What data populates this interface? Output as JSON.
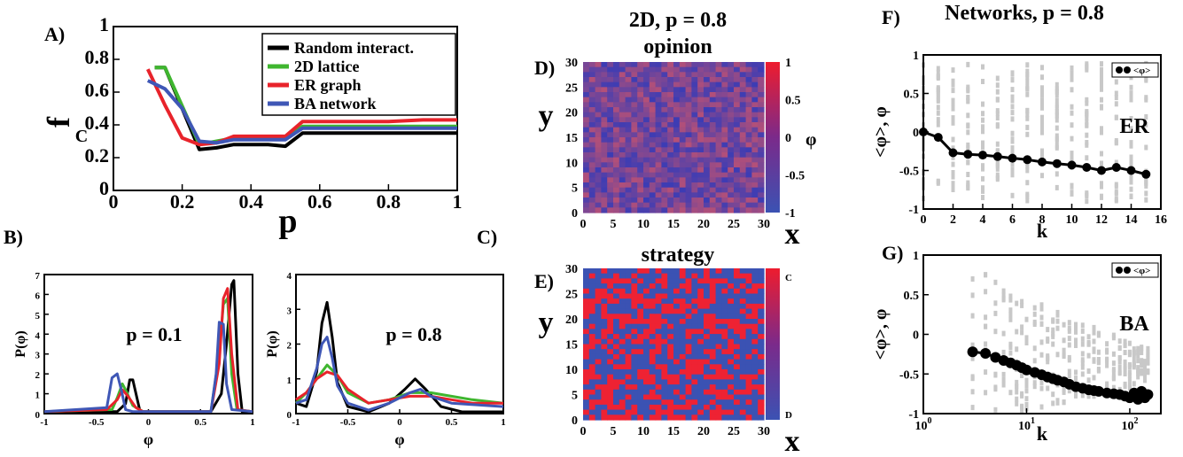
{
  "colors": {
    "random": "#000000",
    "lattice": "#3fb62f",
    "er": "#e8232b",
    "ba": "#3f57b6",
    "gray": "#c8c8c8",
    "blue": "#3b52b3",
    "red": "#ee2233"
  },
  "chart_data": [
    {
      "id": "A",
      "type": "line",
      "panel_label": "A)",
      "xlabel": "p",
      "ylabel": "f",
      "ylabel_sub": "C",
      "xlim": [
        0,
        1
      ],
      "ylim": [
        0,
        1
      ],
      "xticks": [
        "0",
        "0.2",
        "0.4",
        "0.6",
        "0.8",
        "1"
      ],
      "yticks": [
        "0",
        "0.2",
        "0.4",
        "0.6",
        "0.8",
        "1"
      ],
      "legend_position": "top-right",
      "series": [
        {
          "name": "Random interact.",
          "color_key": "random",
          "x": [
            0.12,
            0.15,
            0.25,
            0.3,
            0.35,
            0.4,
            0.45,
            0.5,
            0.55,
            0.6,
            0.7,
            0.8,
            0.9,
            1.0
          ],
          "y": [
            0.75,
            0.75,
            0.25,
            0.26,
            0.28,
            0.28,
            0.28,
            0.27,
            0.35,
            0.35,
            0.35,
            0.35,
            0.35,
            0.35
          ]
        },
        {
          "name": "2D lattice",
          "color_key": "lattice",
          "x": [
            0.12,
            0.15,
            0.25,
            0.3,
            0.35,
            0.4,
            0.45,
            0.5,
            0.55,
            0.6,
            0.7,
            0.8,
            0.9,
            1.0
          ],
          "y": [
            0.75,
            0.75,
            0.28,
            0.3,
            0.32,
            0.32,
            0.32,
            0.32,
            0.39,
            0.39,
            0.39,
            0.39,
            0.39,
            0.39
          ]
        },
        {
          "name": "ER graph",
          "color_key": "er",
          "x": [
            0.1,
            0.15,
            0.2,
            0.25,
            0.3,
            0.35,
            0.4,
            0.45,
            0.5,
            0.55,
            0.6,
            0.7,
            0.8,
            0.9,
            1.0
          ],
          "y": [
            0.74,
            0.52,
            0.32,
            0.28,
            0.29,
            0.33,
            0.33,
            0.33,
            0.33,
            0.42,
            0.42,
            0.42,
            0.42,
            0.43,
            0.43
          ]
        },
        {
          "name": "BA network",
          "color_key": "ba",
          "x": [
            0.1,
            0.15,
            0.2,
            0.25,
            0.3,
            0.35,
            0.4,
            0.45,
            0.5,
            0.55,
            0.6,
            0.7,
            0.8,
            0.9,
            1.0
          ],
          "y": [
            0.67,
            0.62,
            0.5,
            0.3,
            0.29,
            0.31,
            0.31,
            0.31,
            0.31,
            0.38,
            0.38,
            0.38,
            0.38,
            0.38,
            0.38
          ]
        }
      ]
    },
    {
      "id": "B",
      "type": "line",
      "panel_label": "B)",
      "annotation": "p = 0.1",
      "xlabel": "φ",
      "ylabel": "P(φ)",
      "xlim": [
        -1,
        1
      ],
      "ylim": [
        0,
        7
      ],
      "xticks": [
        "-1",
        "-0.5",
        "0",
        "0.5",
        "1"
      ],
      "xtick_values": [
        -1,
        -0.5,
        0,
        0.5,
        1
      ],
      "yticks": [
        "0",
        "1",
        "2",
        "3",
        "4",
        "5",
        "6",
        "7"
      ],
      "series": [
        {
          "color_key": "random",
          "x": [
            -1,
            -0.3,
            -0.22,
            -0.18,
            -0.15,
            -0.08,
            0.6,
            0.7,
            0.75,
            0.8,
            0.82,
            0.86,
            0.9,
            1.0
          ],
          "y": [
            0.1,
            0.1,
            0.5,
            1.7,
            1.7,
            0.1,
            0.1,
            1.0,
            3.5,
            6.5,
            6.7,
            2.0,
            0.1,
            0.1
          ]
        },
        {
          "color_key": "lattice",
          "x": [
            -1,
            -0.35,
            -0.3,
            -0.25,
            -0.22,
            -0.15,
            -0.05,
            0.6,
            0.68,
            0.72,
            0.76,
            0.8,
            0.85,
            1.0
          ],
          "y": [
            0.1,
            0.2,
            0.8,
            1.5,
            1.2,
            0.4,
            0.1,
            0.1,
            3.0,
            5.5,
            5.8,
            2.0,
            0.2,
            0.1
          ]
        },
        {
          "color_key": "er",
          "x": [
            -1,
            -0.4,
            -0.3,
            -0.25,
            -0.2,
            -0.12,
            -0.05,
            0.6,
            0.68,
            0.72,
            0.76,
            0.8,
            0.86,
            1.0
          ],
          "y": [
            0.1,
            0.2,
            0.7,
            1.2,
            0.9,
            0.3,
            0.1,
            0.1,
            2.5,
            5.8,
            6.3,
            3.0,
            0.2,
            0.1
          ]
        },
        {
          "color_key": "ba",
          "x": [
            -1,
            -0.4,
            -0.35,
            -0.3,
            -0.26,
            -0.22,
            -0.15,
            0.6,
            0.65,
            0.68,
            0.72,
            0.75,
            0.8,
            1.0
          ],
          "y": [
            0.1,
            0.3,
            1.8,
            2.0,
            1.2,
            0.2,
            0.1,
            0.1,
            2.0,
            4.6,
            4.5,
            1.5,
            0.2,
            0.1
          ]
        }
      ]
    },
    {
      "id": "C",
      "type": "line",
      "panel_label": "C)",
      "annotation": "p = 0.8",
      "xlabel": "φ",
      "ylabel": "P(φ)",
      "xlim": [
        -1,
        1
      ],
      "ylim": [
        0,
        4
      ],
      "xticks": [
        "-1",
        "-0.5",
        "0",
        "0.5",
        "1"
      ],
      "xtick_values": [
        -1,
        -0.5,
        0,
        0.5,
        1
      ],
      "yticks": [
        "0",
        "1",
        "2",
        "3",
        "4"
      ],
      "series": [
        {
          "color_key": "random",
          "x": [
            -1,
            -0.9,
            -0.8,
            -0.75,
            -0.7,
            -0.65,
            -0.6,
            -0.5,
            -0.3,
            -0.1,
            0.05,
            0.15,
            0.25,
            0.4,
            0.6,
            0.8,
            1.0
          ],
          "y": [
            0.3,
            0.2,
            1.2,
            2.6,
            3.2,
            2.2,
            0.9,
            0.2,
            0.05,
            0.3,
            0.7,
            1.0,
            0.7,
            0.2,
            0.05,
            0.05,
            0.05
          ]
        },
        {
          "color_key": "lattice",
          "x": [
            -1,
            -0.9,
            -0.8,
            -0.7,
            -0.6,
            -0.5,
            -0.3,
            -0.1,
            0.1,
            0.3,
            0.5,
            0.7,
            1.0
          ],
          "y": [
            0.3,
            0.6,
            1.0,
            1.4,
            1.1,
            0.6,
            0.3,
            0.4,
            0.6,
            0.6,
            0.5,
            0.4,
            0.3
          ]
        },
        {
          "color_key": "er",
          "x": [
            -1,
            -0.9,
            -0.8,
            -0.7,
            -0.6,
            -0.5,
            -0.3,
            -0.1,
            0.1,
            0.3,
            0.5,
            0.7,
            1.0
          ],
          "y": [
            0.4,
            0.6,
            1.0,
            1.2,
            1.1,
            0.7,
            0.3,
            0.4,
            0.5,
            0.5,
            0.4,
            0.3,
            0.3
          ]
        },
        {
          "color_key": "ba",
          "x": [
            -1,
            -0.9,
            -0.8,
            -0.75,
            -0.7,
            -0.65,
            -0.6,
            -0.5,
            -0.3,
            -0.1,
            0.1,
            0.2,
            0.3,
            0.5,
            1.0
          ],
          "y": [
            0.3,
            0.4,
            1.3,
            2.0,
            2.2,
            1.6,
            0.8,
            0.3,
            0.1,
            0.3,
            0.6,
            0.7,
            0.5,
            0.3,
            0.2
          ]
        }
      ]
    },
    {
      "id": "D",
      "type": "heatmap",
      "panel_label": "D)",
      "title": "2D, p = 0.8",
      "subtitle": "opinion",
      "xlabel": "x",
      "ylabel": "y",
      "xlim": [
        0,
        30
      ],
      "ylim": [
        0,
        30
      ],
      "xticks": [
        "0",
        "5",
        "10",
        "15",
        "20",
        "25",
        "30"
      ],
      "yticks": [
        "0",
        "5",
        "10",
        "15",
        "20",
        "25",
        "30"
      ],
      "colorbar_label": "φ",
      "colorbar_ticks": [
        "1",
        "0.5",
        "0",
        "-0.5",
        "-1"
      ]
    },
    {
      "id": "E",
      "type": "heatmap",
      "panel_label": "E)",
      "title": "strategy",
      "xlabel": "x",
      "ylabel": "y",
      "xlim": [
        0,
        30
      ],
      "ylim": [
        0,
        30
      ],
      "xticks": [
        "0",
        "5",
        "10",
        "15",
        "20",
        "25",
        "30"
      ],
      "yticks": [
        "0",
        "5",
        "10",
        "15",
        "20",
        "25",
        "30"
      ],
      "colorbar_ticks": [
        "C",
        "D"
      ]
    },
    {
      "id": "F",
      "type": "scatter",
      "panel_label": "F)",
      "title": "Networks, p = 0.8",
      "annotation": "ER",
      "xlabel": "k",
      "ylabel": "<φ>, φ",
      "xlim": [
        0,
        16
      ],
      "ylim": [
        -1,
        1
      ],
      "xticks": [
        "0",
        "2",
        "4",
        "6",
        "8",
        "10",
        "12",
        "14",
        "16"
      ],
      "yticks": [
        "1",
        "0.5",
        "0",
        "-0.5",
        "-1"
      ],
      "legend": "<φ>",
      "mean_x": [
        0,
        1,
        2,
        3,
        4,
        5,
        6,
        7,
        8,
        9,
        10,
        11,
        12,
        13,
        14,
        15
      ],
      "mean_y": [
        0.0,
        -0.07,
        -0.27,
        -0.29,
        -0.3,
        -0.32,
        -0.34,
        -0.36,
        -0.39,
        -0.41,
        -0.43,
        -0.46,
        -0.5,
        -0.46,
        -0.5,
        -0.55
      ]
    },
    {
      "id": "G",
      "type": "scatter",
      "panel_label": "G)",
      "annotation": "BA",
      "xlabel": "k",
      "ylabel": "<φ>, φ",
      "xscale": "log",
      "xlim": [
        1,
        200
      ],
      "ylim": [
        -1,
        1
      ],
      "xticks": [
        "10^0",
        "10^1",
        "10^2"
      ],
      "yticks": [
        "1",
        "0.5",
        "0",
        "-0.5",
        "-1"
      ],
      "legend": "<φ>",
      "mean_x": [
        3,
        4,
        5,
        6,
        7,
        8,
        9,
        10,
        12,
        14,
        16,
        18,
        20,
        23,
        26,
        30,
        35,
        40,
        45,
        50,
        60,
        70,
        80,
        90,
        100,
        110,
        120,
        130,
        140,
        150
      ],
      "mean_y": [
        -0.22,
        -0.24,
        -0.29,
        -0.33,
        -0.36,
        -0.39,
        -0.42,
        -0.45,
        -0.48,
        -0.51,
        -0.54,
        -0.56,
        -0.58,
        -0.6,
        -0.63,
        -0.66,
        -0.68,
        -0.7,
        -0.71,
        -0.72,
        -0.74,
        -0.75,
        -0.76,
        -0.78,
        -0.8,
        -0.74,
        -0.82,
        -0.72,
        -0.8,
        -0.76
      ]
    }
  ]
}
